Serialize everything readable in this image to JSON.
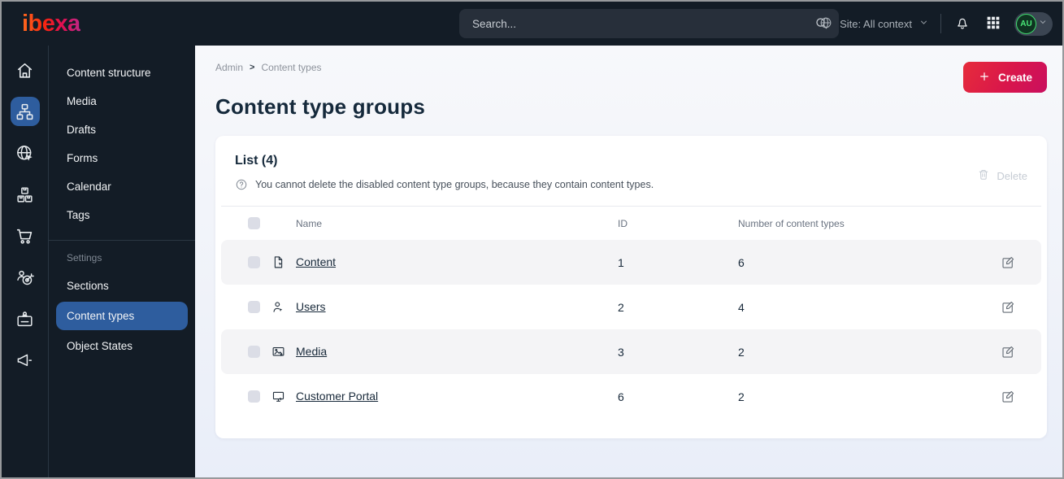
{
  "topbar": {
    "logo_text": "ibexa",
    "search_placeholder": "Search...",
    "site_context_label": "Site: All context",
    "avatar_initials": "AU"
  },
  "rail_icons": [
    "home-icon",
    "sitemap-icon",
    "globe-cursor-icon",
    "boxes-icon",
    "cart-icon",
    "target-customer-icon",
    "badge-icon",
    "megaphone-icon"
  ],
  "rail_active_icon": "sitemap-icon",
  "sidebar": {
    "items": [
      "Content structure",
      "Media",
      "Drafts",
      "Forms",
      "Calendar",
      "Tags"
    ],
    "section_label": "Settings",
    "settings_items": [
      "Sections",
      "Content types",
      "Object States"
    ],
    "active_item": "Content types"
  },
  "main": {
    "breadcrumb": {
      "items": [
        "Admin",
        "Content types"
      ],
      "separator": ">"
    },
    "title": "Content type groups",
    "create_button_label": "Create",
    "card": {
      "list_title": "List (4)",
      "help_text": "You cannot delete the disabled content type groups, because they contain content types.",
      "delete_button_label": "Delete",
      "table": {
        "headers": [
          "Name",
          "ID",
          "Number of content types"
        ],
        "rows": [
          {
            "icon": "file-edit-icon",
            "name": "Content",
            "id": "1",
            "content_types": "6"
          },
          {
            "icon": "user-edit-icon",
            "name": "Users",
            "id": "2",
            "content_types": "4"
          },
          {
            "icon": "image-edit-icon",
            "name": "Media",
            "id": "3",
            "content_types": "2"
          },
          {
            "icon": "monitor-edit-icon",
            "name": "Customer Portal",
            "id": "6",
            "content_types": "2"
          }
        ]
      }
    }
  },
  "colors": {
    "topbar_bg": "#131c26",
    "sidebar_bg": "#131c26",
    "active_item_blue": "#2e5d9e",
    "brand_gradient_start": "#e62c3b",
    "brand_gradient_end": "#c90f5f",
    "logo_gradient_start": "#ff6a1f",
    "logo_gradient_end": "#c02887",
    "avatar_green": "#3edc6d",
    "row_stripe_bg": "#f4f4f6",
    "disabled_gray": "#c6ccd4",
    "text_dark_navy": "#15293b"
  }
}
